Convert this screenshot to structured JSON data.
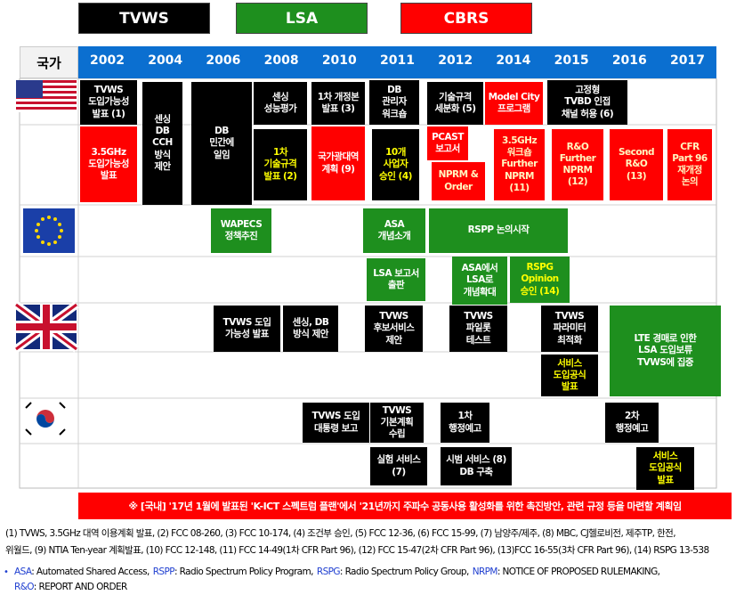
{
  "legend": [
    "TVWS",
    "LSA",
    "CBRS"
  ],
  "header": {
    "corner": "국가",
    "years": [
      "2002",
      "2004",
      "2006",
      "2008",
      "2010",
      "2011",
      "2012",
      "2014",
      "2015",
      "2016",
      "2017"
    ]
  },
  "boxes": [
    {
      "lines": [
        "TVWS",
        "도입가능성",
        "발표 (1)"
      ]
    },
    {
      "lines": [
        "센싱",
        "DB",
        "CCH",
        "방식",
        "제안"
      ]
    },
    {
      "lines": [
        "DB",
        "민간에",
        "일임"
      ]
    },
    {
      "lines": [
        "센싱",
        "성능평가"
      ]
    },
    {
      "lines": [
        "1차 개정본",
        "발표 (3)"
      ]
    },
    {
      "lines": [
        "DB",
        "관리자",
        "워크숍"
      ]
    },
    {
      "lines": [
        "기술규격",
        "세분화 (5)"
      ]
    },
    {
      "lines": [
        "Model City",
        "프로그램"
      ]
    },
    {
      "lines": [
        "고정형",
        "TVBD 인접",
        "채널 허용 (6)"
      ]
    },
    {
      "lines": [
        "3.5GHz",
        "도입가능성",
        "발표"
      ]
    },
    {
      "lines": [
        "1차",
        "기술규격",
        "발표 (2)"
      ]
    },
    {
      "lines": [
        "국가광대역",
        "계획 (9)"
      ]
    },
    {
      "lines": [
        "10개",
        "사업자",
        "승인 (4)"
      ]
    },
    {
      "lines": [
        "PCAST",
        "보고서"
      ]
    },
    {
      "lines": [
        "NPRM &",
        "Order"
      ]
    },
    {
      "lines": [
        "3.5GHz",
        "워크숍",
        "Further",
        "NPRM (11)"
      ]
    },
    {
      "lines": [
        "R&O",
        "Further",
        "NPRM",
        "(12)"
      ]
    },
    {
      "lines": [
        "Second",
        "R&O",
        "(13)"
      ]
    },
    {
      "lines": [
        "CFR",
        "Part 96",
        "재개정",
        "논의"
      ]
    },
    {
      "lines": [
        "WAPECS",
        "정책추진"
      ]
    },
    {
      "lines": [
        "ASA",
        "개념소개"
      ]
    },
    {
      "lines": [
        "RSPP 논의시작"
      ]
    },
    {
      "lines": [
        "LSA 보고서",
        "출판"
      ]
    },
    {
      "lines": [
        "ASA에서",
        "LSA로",
        "개념확대"
      ]
    },
    {
      "lines": [
        "RSPG",
        "Opinion",
        "승인 (14)"
      ]
    },
    {
      "lines": [
        "TVWS 도입",
        "가능성 발표"
      ]
    },
    {
      "lines": [
        "센싱, DB",
        "방식 제안"
      ]
    },
    {
      "lines": [
        "TVWS",
        "후보서비스",
        "제안"
      ]
    },
    {
      "lines": [
        "TVWS",
        "파일롯",
        "테스트"
      ]
    },
    {
      "lines": [
        "TVWS",
        "파라미터",
        "최적화"
      ]
    },
    {
      "lines": [
        "서비스",
        "도입공식",
        "발표"
      ]
    },
    {
      "lines": [
        "LTE 경매로 인한",
        "LSA 도입보류",
        "TVWS에 집중"
      ]
    },
    {
      "lines": [
        "TVWS 도입",
        "대통령 보고"
      ]
    },
    {
      "lines": [
        "TVWS",
        "기본계획",
        "수립"
      ]
    },
    {
      "lines": [
        "1차",
        "행정예고"
      ]
    },
    {
      "lines": [
        "2차",
        "행정예고"
      ]
    },
    {
      "lines": [
        "실험 서비스",
        "(7)"
      ]
    },
    {
      "lines": [
        "시범 서비스 (8)",
        "DB 구축"
      ]
    },
    {
      "lines": [
        "서비스",
        "도입공식",
        "발표"
      ]
    }
  ],
  "banner": "※ [국내] '17년 1월에 발표된 'K-ICT 스펙트럼 플랜'에서 '21년까지 주파수 공동사용 활성화를 위한 촉진방안, 관련 규정 등을 마련할 계획임",
  "notes": [
    "(1) TVWS, 3.5GHz 대역 이용계획 발표, (2) FCC 08-260, (3) FCC 10-174, (4) 조건부 승인, (5) FCC 12-36, (6) FCC 15-99, (7) 남양주/제주, (8) MBC, CJ헬로비전, 제주TP, 한전,",
    "위월드, (9) NTIA Ten-year 계획발표, (10) FCC 12-148, (11) FCC 14-49(1차 CFR Part 96), (12) FCC 15-47(2차 CFR Part 96), (13)FCC 16-55(3차 CFR Part 96), (14) RSPG 13-538"
  ],
  "abbreviations": [
    {
      "term": "ASA",
      "desc": ": Automated Shared Access,"
    },
    {
      "term": "RSPP",
      "desc": ": Radio Spectrum Policy Program,"
    },
    {
      "term": "RSPG",
      "desc": ": Radio Spectrum Policy Group,"
    },
    {
      "term": "NRPM",
      "desc": ": NOTICE OF PROPOSED RULEMAKING,"
    },
    {
      "term": "R&O",
      "desc": ": REPORT AND ORDER"
    }
  ]
}
